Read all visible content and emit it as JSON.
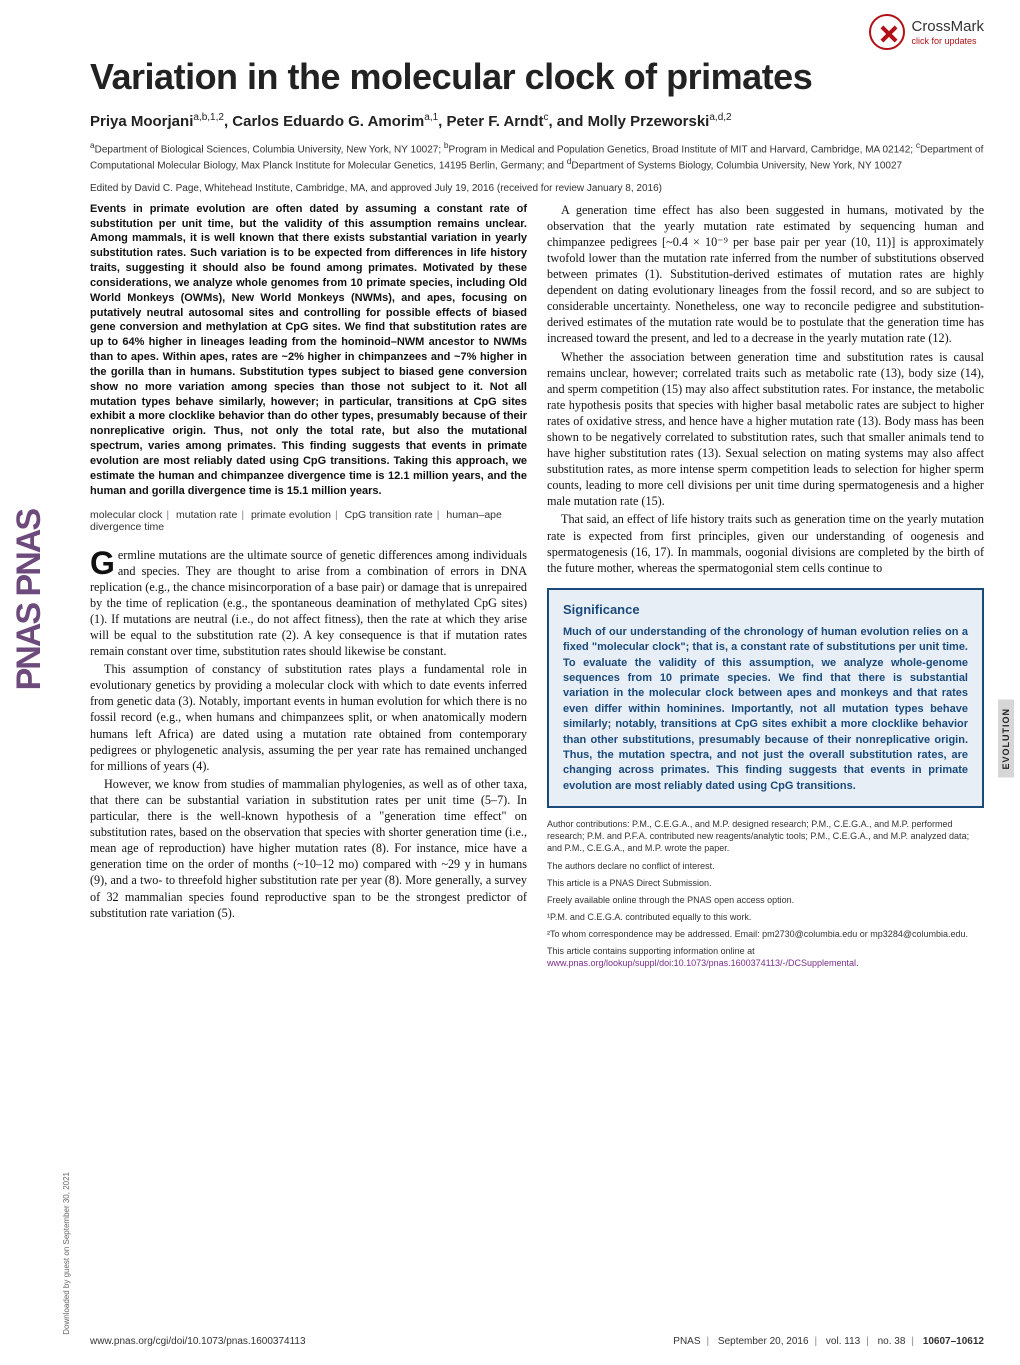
{
  "crossmark": {
    "label": "CrossMark",
    "sub": "click for updates"
  },
  "title": "Variation in the molecular clock of primates",
  "authors_html": "Priya Moorjani<sup>a,b,1,2</sup>, Carlos Eduardo G. Amorim<sup>a,1</sup>, Peter F. Arndt<sup>c</sup>, and Molly Przeworski<sup>a,d,2</sup>",
  "affiliations": "<sup>a</sup>Department of Biological Sciences, Columbia University, New York, NY 10027; <sup>b</sup>Program in Medical and Population Genetics, Broad Institute of MIT and Harvard, Cambridge, MA 02142; <sup>c</sup>Department of Computational Molecular Biology, Max Planck Institute for Molecular Genetics, 14195 Berlin, Germany; and <sup>d</sup>Department of Systems Biology, Columbia University, New York, NY 10027",
  "edited_by": "Edited by David C. Page, Whitehead Institute, Cambridge, MA, and approved July 19, 2016 (received for review January 8, 2016)",
  "abstract": "Events in primate evolution are often dated by assuming a constant rate of substitution per unit time, but the validity of this assumption remains unclear. Among mammals, it is well known that there exists substantial variation in yearly substitution rates. Such variation is to be expected from differences in life history traits, suggesting it should also be found among primates. Motivated by these considerations, we analyze whole genomes from 10 primate species, including Old World Monkeys (OWMs), New World Monkeys (NWMs), and apes, focusing on putatively neutral autosomal sites and controlling for possible effects of biased gene conversion and methylation at CpG sites. We find that substitution rates are up to 64% higher in lineages leading from the hominoid–NWM ancestor to NWMs than to apes. Within apes, rates are ~2% higher in chimpanzees and ~7% higher in the gorilla than in humans. Substitution types subject to biased gene conversion show no more variation among species than those not subject to it. Not all mutation types behave similarly, however; in particular, transitions at CpG sites exhibit a more clocklike behavior than do other types, presumably because of their nonreplicative origin. Thus, not only the total rate, but also the mutational spectrum, varies among primates. This finding suggests that events in primate evolution are most reliably dated using CpG transitions. Taking this approach, we estimate the human and chimpanzee divergence time is 12.1 million years, and the human and gorilla divergence time is 15.1 million years.",
  "keywords": [
    "molecular clock",
    "mutation rate",
    "primate evolution",
    "CpG transition rate",
    "human–ape divergence time"
  ],
  "left_paras": [
    "ermline mutations are the ultimate source of genetic differences among individuals and species. They are thought to arise from a combination of errors in DNA replication (e.g., the chance misincorporation of a base pair) or damage that is unrepaired by the time of replication (e.g., the spontaneous deamination of methylated CpG sites) (1). If mutations are neutral (i.e., do not affect fitness), then the rate at which they arise will be equal to the substitution rate (2). A key consequence is that if mutation rates remain constant over time, substitution rates should likewise be constant.",
    "This assumption of constancy of substitution rates plays a fundamental role in evolutionary genetics by providing a molecular clock with which to date events inferred from genetic data (3). Notably, important events in human evolution for which there is no fossil record (e.g., when humans and chimpanzees split, or when anatomically modern humans left Africa) are dated using a mutation rate obtained from contemporary pedigrees or phylogenetic analysis, assuming the per year rate has remained unchanged for millions of years (4).",
    "However, we know from studies of mammalian phylogenies, as well as of other taxa, that there can be substantial variation in substitution rates per unit time (5–7). In particular, there is the well-known hypothesis of a \"generation time effect\" on substitution rates, based on the observation that species with shorter generation time (i.e., mean age of reproduction) have higher mutation rates (8). For instance, mice have a generation time on the order of months (~10–12 mo) compared with ~29 y in humans (9), and a two- to threefold higher substitution rate per year (8). More generally, a survey of 32 mammalian species found reproductive span to be the strongest predictor of substitution rate variation (5)."
  ],
  "right_paras": [
    "A generation time effect has also been suggested in humans, motivated by the observation that the yearly mutation rate estimated by sequencing human and chimpanzee pedigrees [~0.4 × 10⁻⁹ per base pair per year (10, 11)] is approximately twofold lower than the mutation rate inferred from the number of substitutions observed between primates (1). Substitution-derived estimates of mutation rates are highly dependent on dating evolutionary lineages from the fossil record, and so are subject to considerable uncertainty. Nonetheless, one way to reconcile pedigree and substitution-derived estimates of the mutation rate would be to postulate that the generation time has increased toward the present, and led to a decrease in the yearly mutation rate (12).",
    "Whether the association between generation time and substitution rates is causal remains unclear, however; correlated traits such as metabolic rate (13), body size (14), and sperm competition (15) may also affect substitution rates. For instance, the metabolic rate hypothesis posits that species with higher basal metabolic rates are subject to higher rates of oxidative stress, and hence have a higher mutation rate (13). Body mass has been shown to be negatively correlated to substitution rates, such that smaller animals tend to have higher substitution rates (13). Sexual selection on mating systems may also affect substitution rates, as more intense sperm competition leads to selection for higher sperm counts, leading to more cell divisions per unit time during spermatogenesis and a higher male mutation rate (15).",
    "That said, an effect of life history traits such as generation time on the yearly mutation rate is expected from first principles, given our understanding of oogenesis and spermatogenesis (16, 17). In mammals, oogonial divisions are completed by the birth of the future mother, whereas the spermatogonial stem cells continue to"
  ],
  "significance": {
    "title": "Significance",
    "body": "Much of our understanding of the chronology of human evolution relies on a fixed \"molecular clock\"; that is, a constant rate of substitutions per unit time. To evaluate the validity of this assumption, we analyze whole-genome sequences from 10 primate species. We find that there is substantial variation in the molecular clock between apes and monkeys and that rates even differ within hominines. Importantly, not all mutation types behave similarly; notably, transitions at CpG sites exhibit a more clocklike behavior than other substitutions, presumably because of their nonreplicative origin. Thus, the mutation spectra, and not just the overall substitution rates, are changing across primates. This finding suggests that events in primate evolution are most reliably dated using CpG transitions."
  },
  "meta": {
    "contributions": "Author contributions: P.M., C.E.G.A., and M.P. designed research; P.M., C.E.G.A., and M.P. performed research; P.M. and P.F.A. contributed new reagents/analytic tools; P.M., C.E.G.A., and M.P. analyzed data; and P.M., C.E.G.A., and M.P. wrote the paper.",
    "coi": "The authors declare no conflict of interest.",
    "direct": "This article is a PNAS Direct Submission.",
    "oa": "Freely available online through the PNAS open access option.",
    "equal": "¹P.M. and C.E.G.A. contributed equally to this work.",
    "corr": "²To whom correspondence may be addressed. Email: pm2730@columbia.edu or mp3284@columbia.edu.",
    "si": "This article contains supporting information online at ",
    "si_link": "www.pnas.org/lookup/suppl/doi:10.1073/pnas.1600374113/-/DCSupplemental",
    "si_end": "."
  },
  "footer": {
    "doi": "www.pnas.org/cgi/doi/10.1073/pnas.1600374113",
    "journal": "PNAS",
    "date": "September 20, 2016",
    "vol": "vol. 113",
    "no": "no. 38",
    "pages": "10607–10612"
  },
  "sidebar_logo_text": "PNAS PNAS",
  "evolution_tab": "EVOLUTION",
  "download_note": "Downloaded by guest on September 30, 2021",
  "colors": {
    "sig_border": "#1a4a7a",
    "sig_bg": "#e8eef6",
    "link": "#7a2e8a",
    "crossmark_red": "#b01116",
    "logo_purple": "#6d4a7c",
    "tab_bg": "#d6d6d6"
  }
}
